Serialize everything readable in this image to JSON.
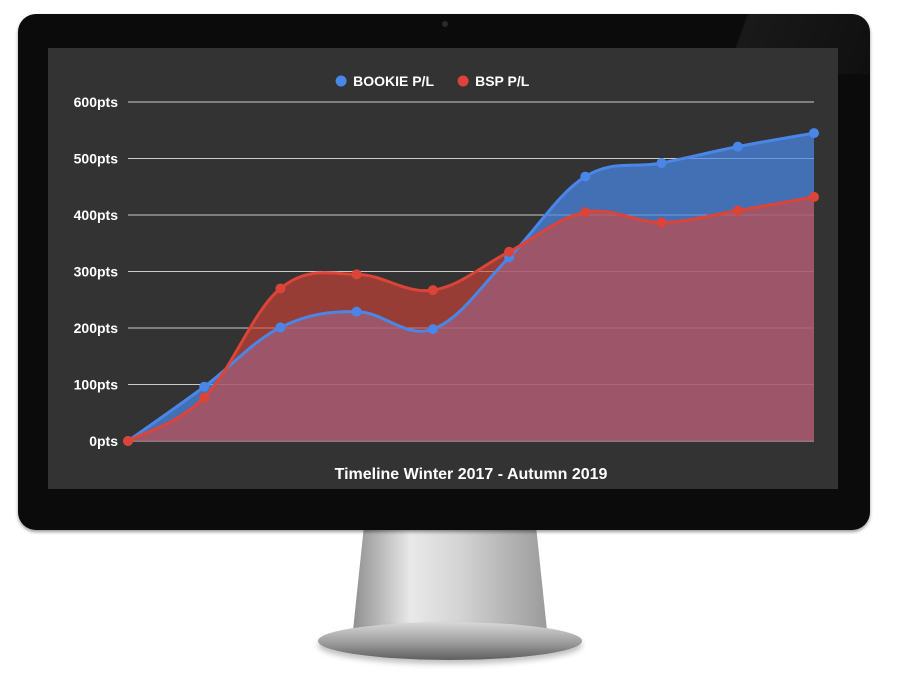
{
  "chart_data": {
    "type": "area",
    "xlabel": "Timeline Winter 2017 - Autumn 2019",
    "ylabel": "",
    "ylim": [
      0,
      600
    ],
    "y_ticks": [
      {
        "value": 0,
        "label": "0pts"
      },
      {
        "value": 100,
        "label": "100pts"
      },
      {
        "value": 200,
        "label": "200pts"
      },
      {
        "value": 300,
        "label": "300pts"
      },
      {
        "value": 400,
        "label": "400pts"
      },
      {
        "value": 500,
        "label": "500pts"
      },
      {
        "value": 600,
        "label": "600pts"
      }
    ],
    "x": [
      0,
      1,
      2,
      3,
      4,
      5,
      6,
      7,
      8,
      9
    ],
    "grid": true,
    "legend_position": "top-center",
    "series": [
      {
        "name": "BOOKIE P/L",
        "color": "#4a86e8",
        "values": [
          0,
          96,
          201,
          229,
          198,
          325,
          468,
          492,
          521,
          545
        ]
      },
      {
        "name": "BSP P/L",
        "color": "#db4437",
        "values": [
          0,
          77,
          270,
          295,
          267,
          335,
          405,
          387,
          408,
          432
        ]
      }
    ]
  }
}
